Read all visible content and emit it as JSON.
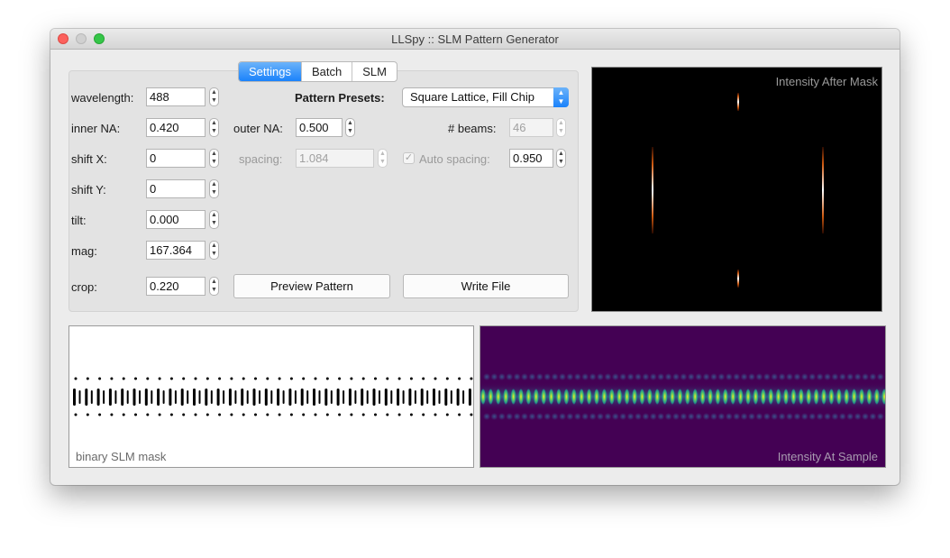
{
  "window": {
    "title": "LLSpy :: SLM Pattern Generator"
  },
  "tabs": [
    {
      "label": "Settings",
      "active": true
    },
    {
      "label": "Batch",
      "active": false
    },
    {
      "label": "SLM",
      "active": false
    }
  ],
  "fields": {
    "wavelength": {
      "label": "wavelength:",
      "value": "488"
    },
    "inner_na": {
      "label": "inner NA:",
      "value": "0.420"
    },
    "outer_na": {
      "label": "outer NA:",
      "value": "0.500"
    },
    "shift_x": {
      "label": "shift X:",
      "value": "0"
    },
    "shift_y": {
      "label": "shift Y:",
      "value": "0"
    },
    "tilt": {
      "label": "tilt:",
      "value": "0.000"
    },
    "mag": {
      "label": "mag:",
      "value": "167.364"
    },
    "crop": {
      "label": "crop:",
      "value": "0.220"
    },
    "beams": {
      "label": "# beams:",
      "value": "46",
      "disabled": true
    },
    "spacing": {
      "label": "spacing:",
      "value": "1.084",
      "disabled": true
    },
    "auto_spacing": {
      "label": "Auto spacing:",
      "value": "0.950",
      "checked": true,
      "disabled": true
    }
  },
  "presets": {
    "label": "Pattern Presets:",
    "selected": "Square Lattice, Fill Chip"
  },
  "buttons": {
    "preview": "Preview Pattern",
    "write": "Write File"
  },
  "plots": {
    "after_mask": {
      "label": "Intensity After Mask",
      "background": "#000000"
    },
    "slm_mask": {
      "label": "binary SLM mask",
      "background": "#ffffff"
    },
    "at_sample": {
      "label": "Intensity At Sample",
      "background": "#440154"
    }
  },
  "colors": {
    "accent": "#1a82fb",
    "viridis_dark": "#440154",
    "viridis_mid": "#21918c",
    "viridis_bright": "#fde725"
  }
}
